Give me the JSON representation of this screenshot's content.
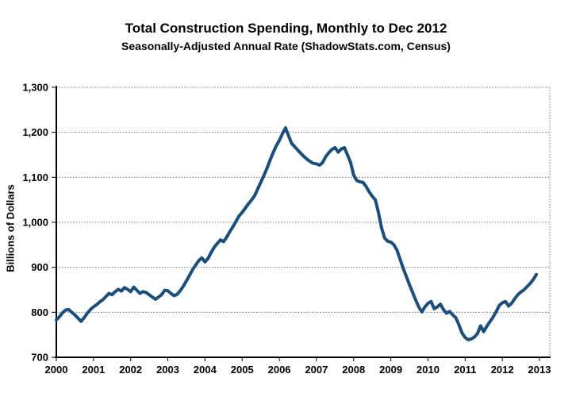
{
  "header": {
    "title": "Total Construction Spending, Monthly to Dec 2012",
    "subtitle": "Seasonally-Adjusted Annual Rate (ShadowStats.com, Census)"
  },
  "chart_data": {
    "type": "line",
    "title": "Total Construction Spending, Monthly to Dec 2012",
    "subtitle": "Seasonally-Adjusted Annual Rate (ShadowStats.com, Census)",
    "xlabel": "",
    "ylabel": "Billions of Dollars",
    "ylim": [
      700,
      1300
    ],
    "ytick_values": [
      700,
      800,
      900,
      1000,
      1100,
      1200,
      1300
    ],
    "ytick_labels": [
      "700",
      "800",
      "900",
      "1,000",
      "1,100",
      "1,200",
      "1,300"
    ],
    "xtick_labels": [
      "2000",
      "2001",
      "2002",
      "2003",
      "2004",
      "2005",
      "2006",
      "2007",
      "2008",
      "2009",
      "2010",
      "2011",
      "2012",
      "2013"
    ],
    "grid": "horizontal dotted gridlines at each 100, dotted top and right plot border, solid black left and bottom axes",
    "legend": "none",
    "line_color": "#1B4E7C",
    "frequency": "monthly",
    "x_start": "2000-01",
    "x_end": "2012-12",
    "series": [
      {
        "name": "Total Construction Spending (SAAR, billions of dollars)",
        "values": [
          783,
          790,
          799,
          805,
          806,
          800,
          794,
          787,
          780,
          788,
          798,
          806,
          812,
          817,
          823,
          828,
          835,
          842,
          839,
          846,
          851,
          847,
          855,
          851,
          846,
          856,
          849,
          842,
          846,
          844,
          839,
          834,
          829,
          834,
          839,
          849,
          848,
          842,
          837,
          840,
          848,
          858,
          870,
          882,
          895,
          905,
          915,
          921,
          912,
          920,
          933,
          945,
          953,
          961,
          957,
          967,
          979,
          990,
          1002,
          1014,
          1022,
          1031,
          1041,
          1049,
          1059,
          1074,
          1089,
          1104,
          1120,
          1138,
          1155,
          1170,
          1182,
          1197,
          1210,
          1192,
          1175,
          1168,
          1160,
          1153,
          1146,
          1140,
          1135,
          1131,
          1130,
          1127,
          1133,
          1146,
          1155,
          1162,
          1166,
          1156,
          1163,
          1166,
          1150,
          1133,
          1105,
          1093,
          1090,
          1089,
          1080,
          1068,
          1058,
          1050,
          1022,
          988,
          965,
          958,
          956,
          950,
          938,
          918,
          898,
          880,
          862,
          845,
          828,
          812,
          801,
          812,
          820,
          824,
          808,
          812,
          818,
          806,
          798,
          802,
          794,
          788,
          772,
          754,
          744,
          739,
          741,
          745,
          753,
          770,
          757,
          769,
          779,
          789,
          801,
          815,
          821,
          824,
          814,
          820,
          830,
          839,
          845,
          850,
          857,
          864,
          873,
          884
        ]
      }
    ]
  }
}
